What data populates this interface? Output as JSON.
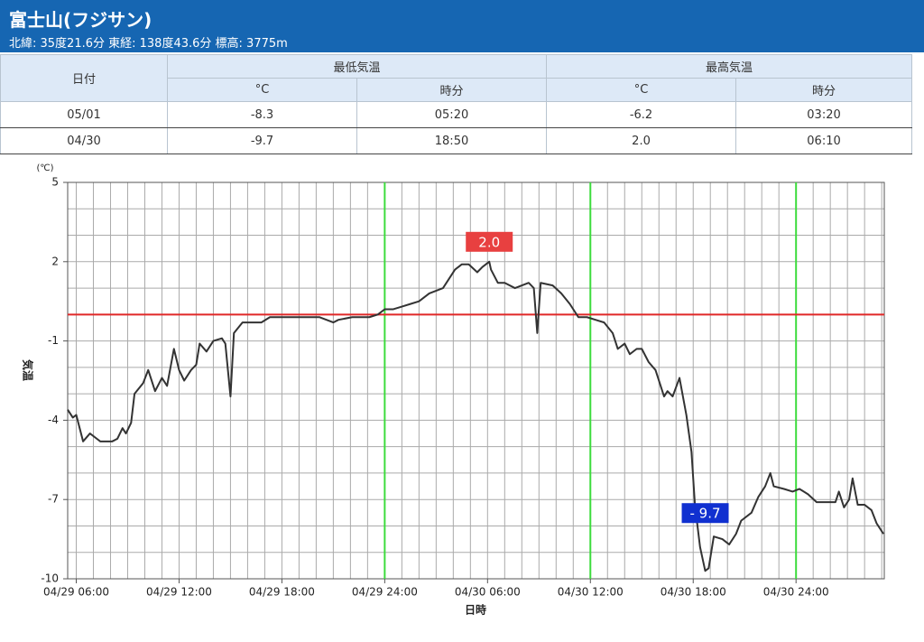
{
  "header": {
    "title": "富士山(フジサン)",
    "subtitle": "北緯: 35度21.6分 東経: 138度43.6分 標高: 3775m"
  },
  "table": {
    "date": "日付",
    "min": "最低気温",
    "max": "最高気温",
    "sub": [
      "°C",
      "時分",
      "°C",
      "時分"
    ],
    "rows": [
      [
        "05/01",
        "-8.3",
        "05:20",
        "-6.2",
        "03:20"
      ],
      [
        "04/30",
        "-9.7",
        "18:50",
        "2.0",
        "06:10"
      ]
    ]
  },
  "chart_data": {
    "type": "line",
    "y_unit": "(℃)",
    "ylabel": "気温",
    "xlabel": "日時",
    "xlim": [
      5.5,
      53.15
    ],
    "ylim": [
      -10,
      5
    ],
    "xticks": [
      {
        "value": 6,
        "label": "04/29 06:00"
      },
      {
        "value": 12,
        "label": "04/29 12:00"
      },
      {
        "value": 18,
        "label": "04/29 18:00"
      },
      {
        "value": 24,
        "label": "04/29 24:00"
      },
      {
        "value": 30,
        "label": "04/30 06:00"
      },
      {
        "value": 36,
        "label": "04/30 12:00"
      },
      {
        "value": 42,
        "label": "04/30 18:00"
      },
      {
        "value": 48,
        "label": "04/30 24:00"
      }
    ],
    "yticks": [
      5,
      2,
      -1,
      -4,
      -7,
      -10
    ],
    "xminorticks": [
      6,
      7,
      8,
      9,
      10,
      11,
      12,
      13,
      14,
      15,
      16,
      17,
      18,
      19,
      20,
      21,
      22,
      23,
      24,
      25,
      26,
      27,
      28,
      29,
      30,
      31,
      32,
      33,
      34,
      35,
      36,
      37,
      38,
      39,
      40,
      41,
      42,
      43,
      44,
      45,
      46,
      47,
      48,
      49,
      50,
      51,
      52,
      53
    ],
    "yminorticks": [
      -10,
      -9,
      -8,
      -7,
      -6,
      -5,
      -4,
      -3,
      -2,
      -1,
      0,
      1,
      2,
      3,
      4,
      5
    ],
    "grid": true,
    "hline": {
      "value": 0,
      "color": "#e02828"
    },
    "vlines": {
      "values": [
        24,
        36,
        48
      ],
      "color": "#3ddc3d"
    },
    "series": [
      {
        "name": "気温",
        "color": "#333333",
        "x": [
          5.5,
          5.8,
          6.0,
          6.4,
          6.8,
          7.2,
          7.4,
          8.1,
          8.4,
          8.7,
          8.9,
          9.2,
          9.4,
          9.9,
          10.2,
          10.6,
          11.0,
          11.3,
          11.7,
          12.0,
          12.3,
          12.7,
          13.0,
          13.2,
          13.6,
          14.0,
          14.5,
          14.7,
          15.0,
          15.2,
          15.7,
          16.0,
          16.8,
          17.3,
          17.9,
          18.7,
          19.7,
          20.2,
          21.0,
          21.3,
          22.1,
          23.1,
          23.6,
          24.0,
          24.5,
          25.0,
          25.5,
          26.0,
          26.6,
          27.4,
          28.1,
          28.5,
          28.9,
          29.4,
          29.7,
          30.1,
          30.2,
          30.6,
          31.0,
          31.6,
          32.4,
          32.7,
          32.9,
          33.1,
          33.8,
          34.3,
          34.8,
          35.3,
          35.8,
          36.3,
          36.8,
          37.3,
          37.6,
          38.0,
          38.3,
          38.7,
          39.0,
          39.4,
          39.8,
          40.3,
          40.5,
          40.8,
          41.2,
          41.6,
          41.9,
          42.1,
          42.4,
          42.7,
          42.9,
          43.2,
          43.7,
          44.1,
          44.5,
          44.8,
          45.4,
          45.8,
          46.2,
          46.5,
          46.7,
          47.3,
          47.8,
          48.2,
          48.7,
          49.2,
          49.7,
          50.3,
          50.5,
          50.8,
          51.1,
          51.3,
          51.6,
          52.0,
          52.4,
          52.7,
          53.1
        ],
        "values": [
          -3.6,
          -3.9,
          -3.8,
          -4.8,
          -4.5,
          -4.7,
          -4.8,
          -4.8,
          -4.7,
          -4.3,
          -4.5,
          -4.1,
          -3.0,
          -2.6,
          -2.1,
          -2.9,
          -2.4,
          -2.7,
          -1.3,
          -2.1,
          -2.5,
          -2.1,
          -1.9,
          -1.1,
          -1.4,
          -1.0,
          -0.9,
          -1.1,
          -3.1,
          -0.7,
          -0.3,
          -0.3,
          -0.3,
          -0.1,
          -0.1,
          -0.1,
          -0.1,
          -0.1,
          -0.3,
          -0.2,
          -0.1,
          -0.1,
          0.0,
          0.2,
          0.2,
          0.3,
          0.4,
          0.5,
          0.8,
          1.0,
          1.7,
          1.9,
          1.9,
          1.6,
          1.8,
          2.0,
          1.7,
          1.2,
          1.2,
          1.0,
          1.2,
          1.0,
          -0.7,
          1.2,
          1.1,
          0.8,
          0.4,
          -0.1,
          -0.1,
          -0.2,
          -0.3,
          -0.7,
          -1.3,
          -1.1,
          -1.5,
          -1.3,
          -1.3,
          -1.8,
          -2.1,
          -3.1,
          -2.9,
          -3.1,
          -2.4,
          -3.8,
          -5.2,
          -7.2,
          -8.8,
          -9.7,
          -9.6,
          -8.4,
          -8.5,
          -8.7,
          -8.3,
          -7.8,
          -7.5,
          -6.9,
          -6.5,
          -6.0,
          -6.5,
          -6.6,
          -6.7,
          -6.6,
          -6.8,
          -7.1,
          -7.1,
          -7.1,
          -6.7,
          -7.3,
          -7.0,
          -6.2,
          -7.2,
          -7.2,
          -7.4,
          -7.9,
          -8.3
        ]
      }
    ],
    "annotations": [
      {
        "text": "2.0",
        "x": 30.1,
        "y": 2.0,
        "color": "#e84040"
      },
      {
        "text": "- 9.7",
        "x": 42.7,
        "y": -9.7,
        "color": "#1030d0"
      }
    ]
  }
}
